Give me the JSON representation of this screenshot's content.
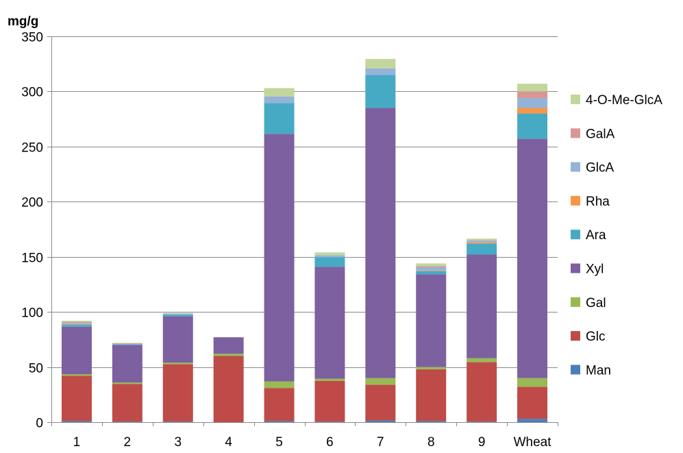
{
  "chart_data": {
    "type": "bar",
    "stacked": true,
    "title": "",
    "xlabel": "",
    "ylabel": "mg/g",
    "ylim": [
      0,
      350
    ],
    "yticks": [
      0,
      50,
      100,
      150,
      200,
      250,
      300,
      350
    ],
    "grid": true,
    "legend_position": "right",
    "categories": [
      "1",
      "2",
      "3",
      "4",
      "5",
      "6",
      "7",
      "8",
      "9",
      "Wheat"
    ],
    "series": [
      {
        "name": "Man",
        "color": "#4A7EBB",
        "values": [
          1,
          0.5,
          0.5,
          0,
          1,
          0.5,
          1.5,
          1,
          0.5,
          3
        ]
      },
      {
        "name": "Glc",
        "color": "#BE4B48",
        "values": [
          41,
          34,
          52,
          60,
          30,
          37,
          32.5,
          47,
          54,
          29
        ]
      },
      {
        "name": "Gal",
        "color": "#98B954",
        "values": [
          1.5,
          1.5,
          1.5,
          2,
          6,
          2,
          6,
          2,
          3.5,
          8
        ]
      },
      {
        "name": "Xyl",
        "color": "#7D60A0",
        "values": [
          43,
          34,
          42,
          15,
          224.5,
          101.5,
          245,
          84,
          94,
          217
        ]
      },
      {
        "name": "Ara",
        "color": "#46AAC5",
        "values": [
          2,
          0.5,
          1.5,
          0,
          28,
          8.5,
          30,
          3,
          10,
          23
        ]
      },
      {
        "name": "Rha",
        "color": "#F79646",
        "values": [
          0.5,
          0,
          0,
          0,
          0,
          0,
          0,
          0.5,
          1,
          5
        ]
      },
      {
        "name": "GlcA",
        "color": "#95B3D7",
        "values": [
          1,
          0.5,
          1,
          0,
          6,
          2,
          6,
          3,
          1.5,
          9
        ]
      },
      {
        "name": "GalA",
        "color": "#D99694",
        "values": [
          1,
          0.5,
          0,
          0,
          0,
          0,
          0,
          1,
          0.5,
          6
        ]
      },
      {
        "name": "4-O-Me-GlcA",
        "color": "#C3D69B",
        "values": [
          1,
          0.5,
          0.5,
          0,
          7.5,
          2.5,
          8.5,
          2.5,
          1.5,
          7
        ]
      }
    ]
  }
}
